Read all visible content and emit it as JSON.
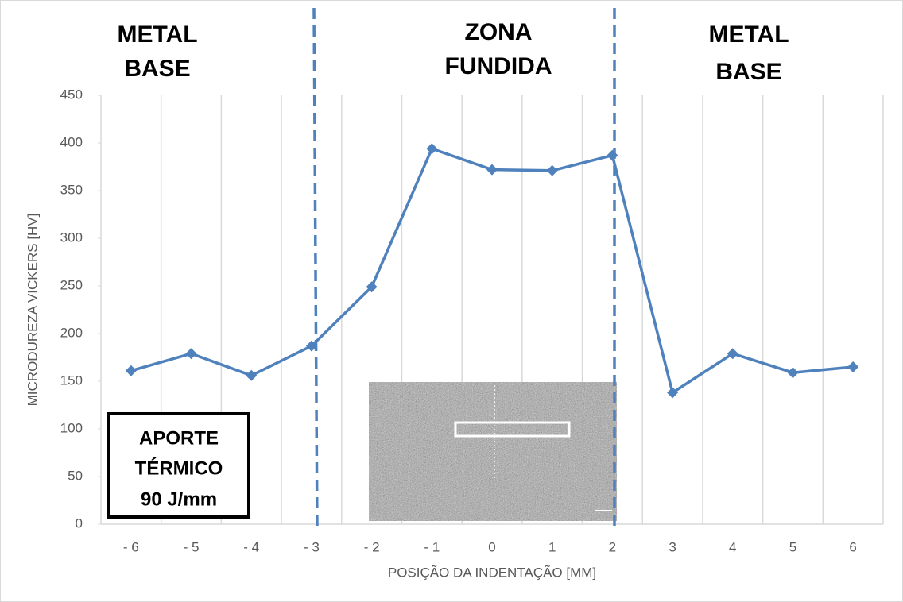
{
  "chart_data": {
    "type": "line",
    "x_label": "POSIÇÃO DA INDENTAÇÃO [MM]",
    "y_label": "MICRODUREZA VICKERS [HV]",
    "categories": [
      "- 6",
      "- 5",
      "- 4",
      "- 3",
      "- 2",
      "- 1",
      "0",
      "1",
      "2",
      "3",
      "4",
      "5",
      "6"
    ],
    "values": [
      161,
      179,
      156,
      187,
      249,
      394,
      372,
      371,
      387,
      138,
      179,
      159,
      165
    ],
    "color": "#4f81bd",
    "ylim": [
      0,
      450
    ],
    "yticks": [
      0,
      50,
      100,
      150,
      200,
      250,
      300,
      350,
      400,
      450
    ],
    "grid": true,
    "annotations": [
      {
        "lines": [
          "METAL",
          "BASE"
        ]
      },
      {
        "lines": [
          "ZONA",
          "FUNDIDA"
        ]
      },
      {
        "lines": [
          "METAL",
          "BASE"
        ]
      },
      {
        "lines": [
          "APORTE",
          "TÉRMICO",
          "90 J/mm"
        ]
      }
    ]
  }
}
